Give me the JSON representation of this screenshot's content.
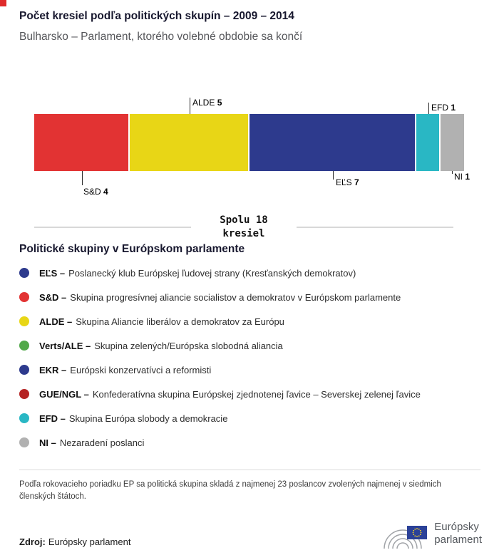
{
  "accent_square_color": "#e02b2b",
  "header": {
    "title": "Počet kresiel podľa politických skupín – 2009 – 2014",
    "subtitle": "Bulharsko – Parlament, ktorého volebné obdobie sa končí"
  },
  "chart_data": {
    "type": "bar",
    "variant": "stacked-horizontal",
    "total": 18,
    "total_label_lines": [
      "Spolu 18",
      "kresiel"
    ],
    "segments": [
      {
        "name": "S&D",
        "value": 4,
        "color": "#e23333",
        "callout": "below"
      },
      {
        "name": "ALDE",
        "value": 5,
        "color": "#e8d616",
        "callout": "above"
      },
      {
        "name": "EĽS",
        "value": 7,
        "color": "#2d3a8d",
        "callout": "below"
      },
      {
        "name": "EFD",
        "value": 1,
        "color": "#29b7c4",
        "callout": "above"
      },
      {
        "name": "NI",
        "value": 1,
        "color": "#b1b1b1",
        "callout": "below"
      }
    ]
  },
  "legend": {
    "heading": "Politické skupiny v Európskom parlamente",
    "items": [
      {
        "abbr": "EĽS –",
        "desc": "Poslanecký klub Európskej ľudovej strany (Kresťanských demokratov)",
        "color": "#2d3a8d"
      },
      {
        "abbr": "S&D –",
        "desc": "Skupina progresívnej aliancie socialistov a demokratov v Európskom parlamente",
        "color": "#e23333"
      },
      {
        "abbr": "ALDE –",
        "desc": "Skupina Aliancie liberálov a demokratov za Európu",
        "color": "#e8d616"
      },
      {
        "abbr": "Verts/ALE –",
        "desc": "Skupina zelených/Európska slobodná aliancia",
        "color": "#51a849"
      },
      {
        "abbr": "EKR –",
        "desc": "Európski konzervatívci a reformisti",
        "color": "#2d3a8d"
      },
      {
        "abbr": "GUE/NGL –",
        "desc": "Konfederatívna skupina Európskej zjednotenej ľavice – Severskej zelenej ľavice",
        "color": "#b52424"
      },
      {
        "abbr": "EFD –",
        "desc": "Skupina Európa slobody a demokracie",
        "color": "#29b7c4"
      },
      {
        "abbr": "NI –",
        "desc": "Nezaradení poslanci",
        "color": "#b1b1b1"
      }
    ]
  },
  "footnote": "Podľa rokovacieho poriadku EP sa politická skupina skladá z najmenej 23 poslancov zvolených najmenej v siedmich členských štátoch.",
  "source": {
    "label": "Zdroj:",
    "text": "Európsky parlament"
  },
  "logo": {
    "line1": "Európsky",
    "line2": "parlament"
  }
}
